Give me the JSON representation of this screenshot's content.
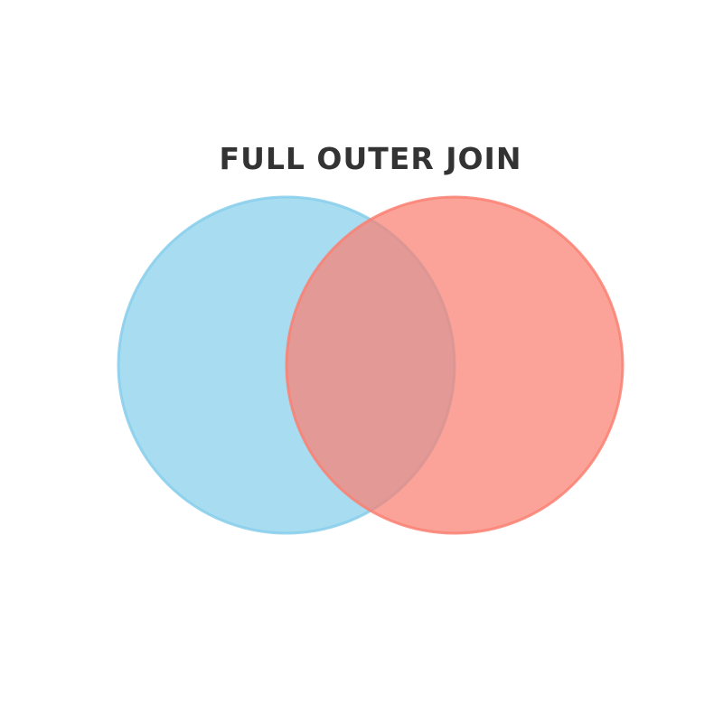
{
  "diagram": {
    "title": "FULL OUTER JOIN",
    "sets": [
      {
        "id": "left",
        "color": "#87CEEB"
      },
      {
        "id": "right",
        "color": "#FA8072"
      }
    ],
    "highlighted_regions": [
      "left-only",
      "intersection",
      "right-only"
    ]
  }
}
